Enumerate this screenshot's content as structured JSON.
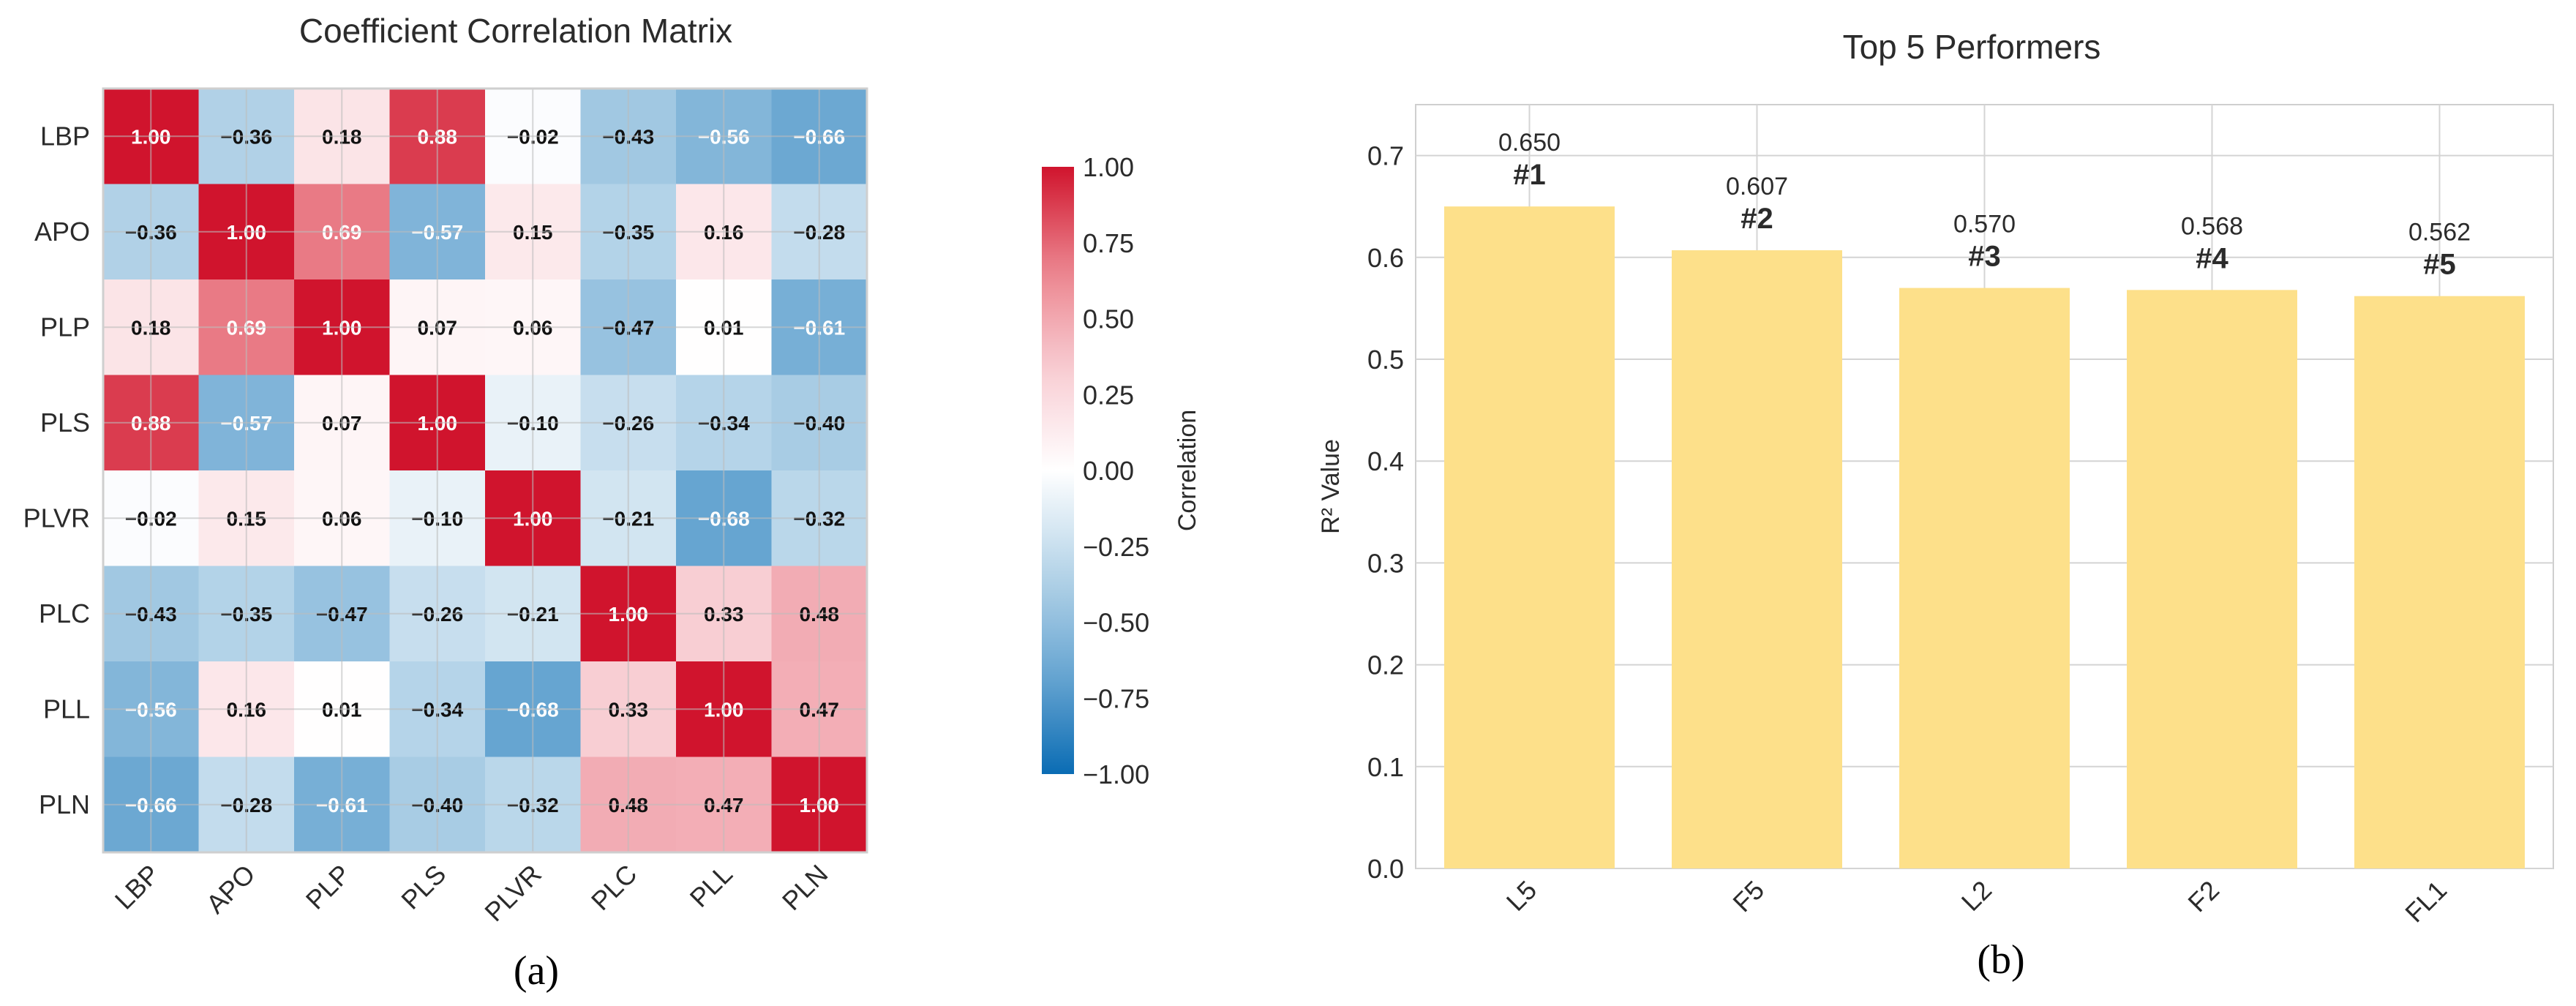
{
  "colors": {
    "neg": "#0a6cb4",
    "mid": "#ffffff",
    "pos": "#d0142d",
    "bar": "#fde08a",
    "grid": "#d4d4d4",
    "frame": "#cfcfcf"
  },
  "chart_data": [
    {
      "type": "heatmap",
      "title": "Coefficient Correlation Matrix",
      "caption": "(a)",
      "row_labels": [
        "LBP",
        "APO",
        "PLP",
        "PLS",
        "PLVR",
        "PLC",
        "PLL",
        "PLN"
      ],
      "col_labels": [
        "LBP",
        "APO",
        "PLP",
        "PLS",
        "PLVR",
        "PLC",
        "PLL",
        "PLN"
      ],
      "values": [
        [
          1.0,
          -0.36,
          0.18,
          0.88,
          -0.02,
          -0.43,
          -0.56,
          -0.66
        ],
        [
          -0.36,
          1.0,
          0.69,
          -0.57,
          0.15,
          -0.35,
          0.16,
          -0.28
        ],
        [
          0.18,
          0.69,
          1.0,
          0.07,
          0.06,
          -0.47,
          0.01,
          -0.61
        ],
        [
          0.88,
          -0.57,
          0.07,
          1.0,
          -0.1,
          -0.26,
          -0.34,
          -0.4
        ],
        [
          -0.02,
          0.15,
          0.06,
          -0.1,
          1.0,
          -0.21,
          -0.68,
          -0.32
        ],
        [
          -0.43,
          -0.35,
          -0.47,
          -0.26,
          -0.21,
          1.0,
          0.33,
          0.48
        ],
        [
          -0.56,
          0.16,
          0.01,
          -0.34,
          -0.68,
          0.33,
          1.0,
          0.47
        ],
        [
          -0.66,
          -0.28,
          -0.61,
          -0.4,
          -0.32,
          0.48,
          0.47,
          1.0
        ]
      ],
      "colorbar": {
        "label": "Correlation",
        "range": [
          -1.0,
          1.0
        ],
        "ticks": [
          1.0,
          0.75,
          0.5,
          0.25,
          0.0,
          -0.25,
          -0.5,
          -0.75,
          -1.0
        ],
        "tick_labels": [
          "1.00",
          "0.75",
          "0.50",
          "0.25",
          "0.00",
          "−0.25",
          "−0.50",
          "−0.75",
          "−1.00"
        ]
      }
    },
    {
      "type": "bar",
      "title": "Top 5 Performers",
      "caption": "(b)",
      "ylabel": "R² Value",
      "categories": [
        "L5",
        "F5",
        "L2",
        "F2",
        "FL1"
      ],
      "values": [
        0.65,
        0.607,
        0.57,
        0.568,
        0.562
      ],
      "value_labels": [
        "0.650",
        "0.607",
        "0.570",
        "0.568",
        "0.562"
      ],
      "rank_labels": [
        "#1",
        "#2",
        "#3",
        "#4",
        "#5"
      ],
      "ylim": [
        0.0,
        0.75
      ],
      "yticks": [
        0.0,
        0.1,
        0.2,
        0.3,
        0.4,
        0.5,
        0.6,
        0.7
      ],
      "ytick_labels": [
        "0.0",
        "0.1",
        "0.2",
        "0.3",
        "0.4",
        "0.5",
        "0.6",
        "0.7"
      ],
      "grid": true
    }
  ]
}
